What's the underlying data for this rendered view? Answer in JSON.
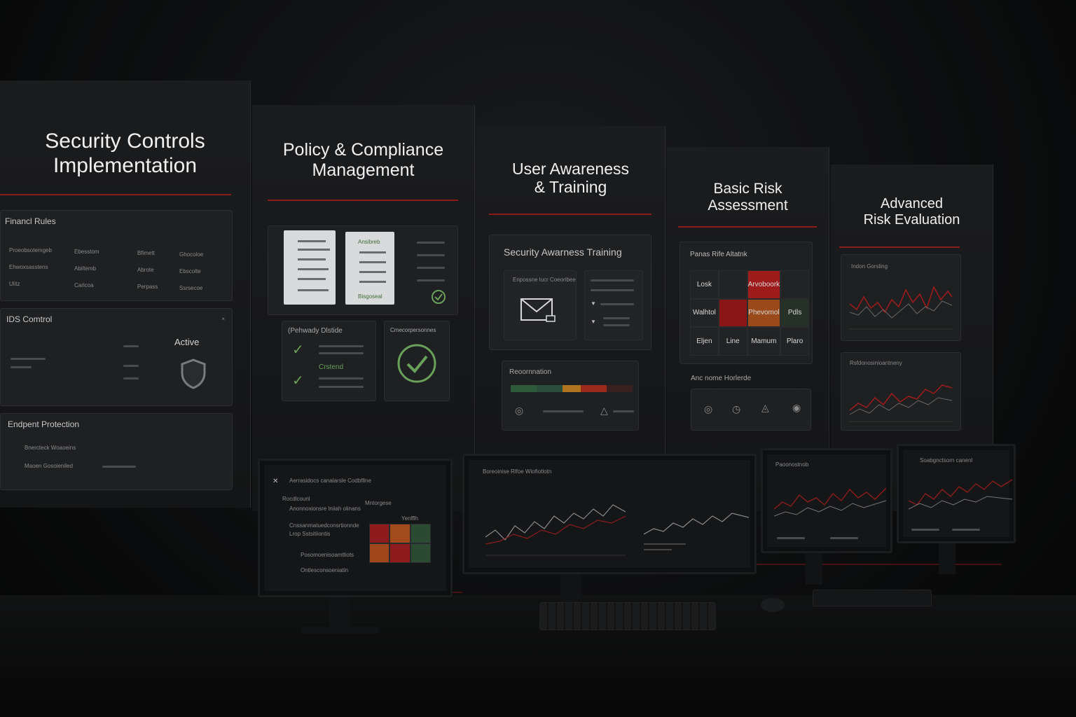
{
  "panels": {
    "p1": {
      "title_line1": "Security Controls",
      "title_line2": "Implementation",
      "firewall": {
        "title": "Financl Rules",
        "rows": [
          [
            "Proeobsotemgeb",
            "Ebesstom",
            "Bfimett",
            "Ghocoloe"
          ],
          [
            "Ehwoxsasstens",
            "Abiltemb",
            "Abrote",
            "Ebscolte"
          ],
          [
            "Ulitz",
            "Carlcoa",
            "Perpass",
            "Ssrsecoe"
          ]
        ]
      },
      "ids": {
        "title": "IDS Comtrol",
        "status": "Active"
      },
      "endpoint": {
        "title": "Endpent Protection",
        "rows": [
          "Bnercteck Woaoeins",
          "Maoen Gosoieniled"
        ]
      }
    },
    "p2": {
      "title_line1": "Policy & Compliance",
      "title_line2": "Management",
      "doc_label_top": "Ansibreb",
      "doc_label_bottom": "Bisgoseal",
      "checklist": {
        "title": "(Pehwady Dlstide",
        "item": "Crstend"
      },
      "compliance": {
        "title": "Cmecorpersonnes"
      }
    },
    "p3": {
      "title_line1": "User Awareness",
      "title_line2": "& Training",
      "training": {
        "title": "Security Awarness Training",
        "card_label": "Enpossne lucr Coeoribee"
      },
      "recommendation": {
        "title": "Reoornnation"
      }
    },
    "p4": {
      "title_line1": "Basic Risk",
      "title_line2": "Assessment",
      "matrix": {
        "title": "Panas Rife Altatnk",
        "cells": [
          "Losk",
          "",
          "Arvoboork",
          "",
          "Walhtol",
          "",
          "Phevomol",
          "Pdls",
          "Eljen",
          "Line",
          "Mamum",
          "Plaro"
        ]
      },
      "actions": {
        "title": "Anc nome Horlerde"
      }
    },
    "p5": {
      "title_line1": "Advanced",
      "title_line2": "Risk Evaluation",
      "chart1_title": "Indon Gorsling",
      "chart2_title": "Rsfdonosinioantneny"
    }
  },
  "monitors": {
    "m1": {
      "title": "Aerrasidocs canalarsle Codbfllne",
      "label_left": "Rocdlcounl",
      "label_mid": "Mntorgese",
      "label_right": "Yenfflh",
      "rows": [
        "Anonnoxionsre lniiah olinans",
        "Cnssanmatuedconsrtionnde",
        "Lrop Sstsitiiontis",
        "Posomoenisoamtliots",
        "Ontlesconsoeniatin"
      ]
    },
    "m2": {
      "title": "Boreoinise Rlfoe Wiofiotlotn"
    },
    "m3": {
      "title": "Paoonostnob"
    },
    "m4": {
      "title": "Soabgnctsorn  canenl"
    }
  },
  "colors": {
    "accent": "#8a1c1c",
    "ok": "#69a15a",
    "risk_high": "#9e1b1b",
    "risk_med": "#b05a22"
  }
}
